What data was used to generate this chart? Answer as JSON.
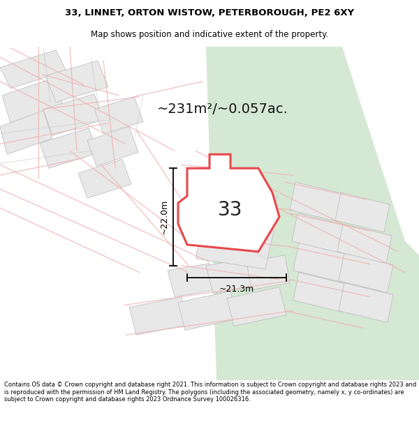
{
  "title_line1": "33, LINNET, ORTON WISTOW, PETERBOROUGH, PE2 6XY",
  "title_line2": "Map shows position and indicative extent of the property.",
  "area_text": "~231m²/~0.057ac.",
  "label_33": "33",
  "dim_width": "~21.3m",
  "dim_height": "~22.0m",
  "footer": "Contains OS data © Crown copyright and database right 2021. This information is subject to Crown copyright and database rights 2023 and is reproduced with the permission of HM Land Registry. The polygons (including the associated geometry, namely x, y co-ordinates) are subject to Crown copyright and database rights 2023 Ordnance Survey 100026316.",
  "bg_map_color": "#f7f5f3",
  "plot_fill": "white",
  "plot_stroke": "#e8474a",
  "neighbor_fill": "#e8e8e8",
  "neighbor_stroke": "#b8b8b8",
  "road_fill": "#d4e8d4",
  "bg_color": "white",
  "footer_bg": "white",
  "pink_line_color": "#f0b0b0",
  "gray_line_color": "#c0c0c0"
}
